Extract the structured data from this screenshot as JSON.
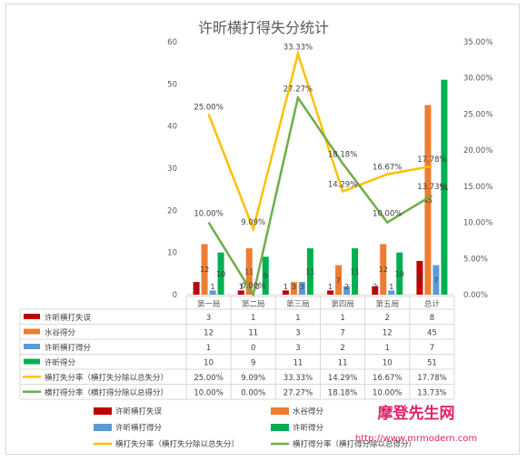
{
  "chart_data": {
    "type": "bar",
    "title": "许昕横打得失分统计",
    "categories": [
      "第一局",
      "第二局",
      "第三局",
      "第四局",
      "第五局",
      "总计"
    ],
    "y_left": {
      "ticks": [
        "0",
        "10",
        "20",
        "30",
        "40",
        "50",
        "60"
      ],
      "ylim": [
        0,
        60
      ]
    },
    "y_right": {
      "ticks": [
        "0.00%",
        "5.00%",
        "10.00%",
        "15.00%",
        "20.00%",
        "25.00%",
        "30.00%",
        "35.00%"
      ],
      "ylim": [
        0,
        35
      ]
    },
    "grid": false,
    "series": [
      {
        "name": "许昕横打失误",
        "kind": "bar",
        "axis": "left",
        "color": "#c00000",
        "values": [
          3,
          1,
          1,
          1,
          2,
          8
        ],
        "labels": [
          "3",
          "1",
          "1",
          "1",
          "2",
          "8"
        ]
      },
      {
        "name": "水谷得分",
        "kind": "bar",
        "axis": "left",
        "color": "#ed7d31",
        "values": [
          12,
          11,
          3,
          7,
          12,
          45
        ],
        "labels": [
          "12",
          "11",
          "3",
          "7",
          "12",
          "45"
        ]
      },
      {
        "name": "许昕横打得分",
        "kind": "bar",
        "axis": "left",
        "color": "#5b9bd5",
        "values": [
          1,
          0,
          3,
          2,
          1,
          7
        ],
        "labels": [
          "1",
          "0",
          "3",
          "2",
          "1",
          "7"
        ]
      },
      {
        "name": "许昕得分",
        "kind": "bar",
        "axis": "left",
        "color": "#00b050",
        "values": [
          10,
          9,
          11,
          11,
          10,
          51
        ],
        "labels": [
          "10",
          "9",
          "11",
          "11",
          "10",
          "51"
        ]
      },
      {
        "name": "横打失分率（横打失分除以总失分）",
        "kind": "line",
        "axis": "right",
        "color": "#ffc000",
        "values": [
          25.0,
          9.09,
          33.33,
          14.29,
          16.67,
          17.78
        ],
        "labels": [
          "25.00%",
          "9.09%",
          "33.33%",
          "14.29%",
          "16.67%",
          "17.78%"
        ]
      },
      {
        "name": "横打得分率（横打得分除以总得分）",
        "kind": "line",
        "axis": "right",
        "color": "#70ad47",
        "values": [
          10.0,
          0.0,
          27.27,
          18.18,
          10.0,
          13.73
        ],
        "labels": [
          "10.00%",
          "0.00%",
          "27.27%",
          "18.18%",
          "10.00%",
          "13.73%"
        ]
      }
    ],
    "legend_position": "bottom"
  },
  "watermark": {
    "brand": "摩登先生网",
    "url": "http://www.mrmodern.com"
  }
}
